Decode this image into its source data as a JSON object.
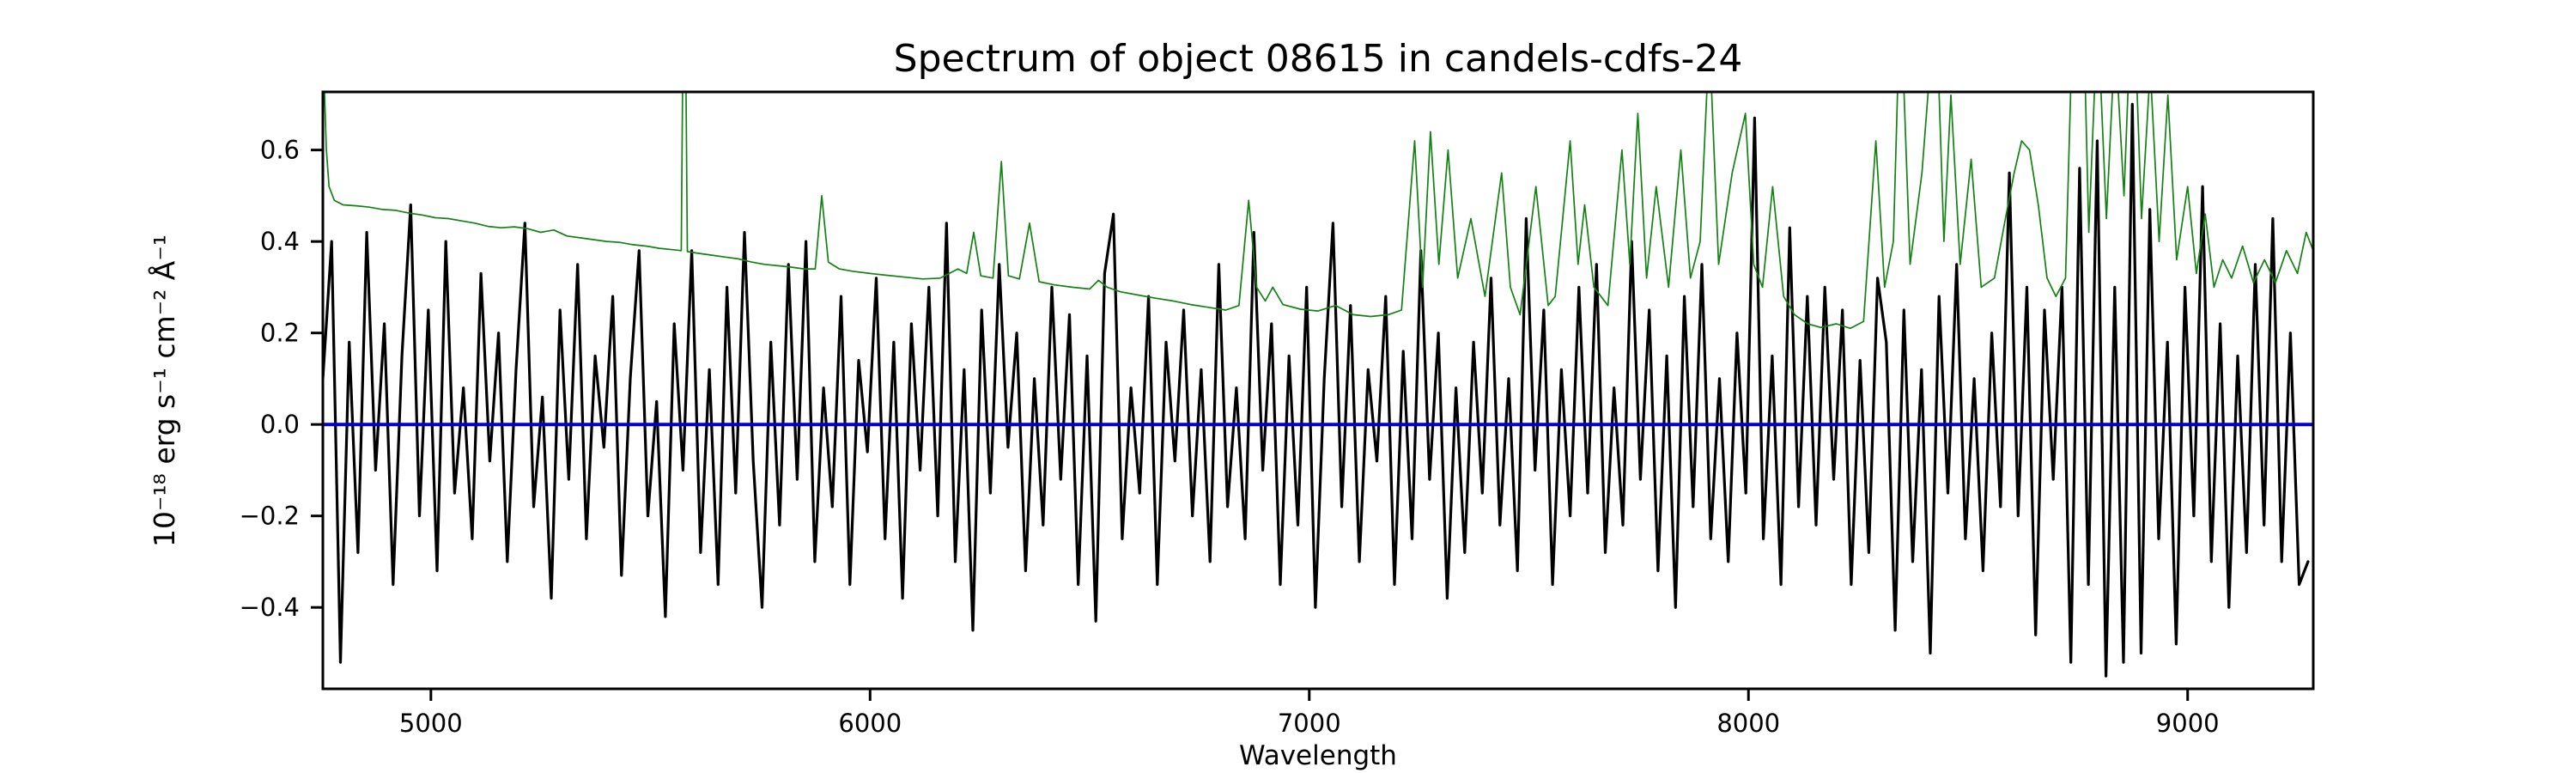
{
  "figure": {
    "title": "Spectrum of object 08615 in candels-cdfs-24",
    "xlabel": "Wavelength",
    "ylabel": "10⁻¹⁸ erg s⁻¹ cm⁻² Å⁻¹"
  },
  "chart_data": {
    "type": "line",
    "title": "Spectrum of object 08615 in candels-cdfs-24",
    "xlabel": "Wavelength",
    "ylabel": "10⁻¹⁸ erg s⁻¹ cm⁻² Å⁻¹",
    "xlim": [
      4754,
      9286
    ],
    "ylim": [
      -0.578,
      0.727
    ],
    "x_ticks": [
      5000,
      6000,
      7000,
      8000,
      9000
    ],
    "y_ticks": [
      0.6,
      0.4,
      0.2,
      0.0,
      -0.2,
      -0.4
    ],
    "grid": false,
    "legend": false,
    "colors": {
      "flux": "#000000",
      "noise": "#128212",
      "zero_line": "#0000cc",
      "axes": "#000000"
    },
    "series": [
      {
        "name": "object-flux-spectrum",
        "kind": "sampled",
        "color": "#000000",
        "linewidth": 3.2,
        "x_start": 4754,
        "x_step": 20,
        "values": [
          0.1,
          0.4,
          -0.52,
          0.18,
          -0.28,
          0.42,
          -0.1,
          0.22,
          -0.35,
          0.15,
          0.48,
          -0.2,
          0.25,
          -0.32,
          0.4,
          -0.15,
          0.08,
          -0.25,
          0.33,
          -0.08,
          0.2,
          -0.3,
          0.12,
          0.44,
          -0.18,
          0.06,
          -0.38,
          0.25,
          -0.12,
          0.35,
          -0.25,
          0.15,
          -0.05,
          0.28,
          -0.33,
          0.1,
          0.38,
          -0.2,
          0.05,
          -0.42,
          0.22,
          -0.1,
          0.38,
          -0.28,
          0.12,
          -0.35,
          0.3,
          -0.15,
          0.42,
          -0.08,
          -0.4,
          0.18,
          -0.22,
          0.35,
          -0.12,
          0.4,
          -0.3,
          0.08,
          -0.18,
          0.28,
          -0.35,
          0.14,
          -0.06,
          0.32,
          -0.25,
          0.18,
          -0.38,
          0.22,
          -0.1,
          0.3,
          -0.2,
          0.44,
          -0.3,
          0.12,
          -0.45,
          0.25,
          -0.15,
          0.35,
          -0.05,
          0.2,
          -0.32,
          0.1,
          -0.22,
          0.3,
          -0.12,
          0.24,
          -0.35,
          0.15,
          -0.43,
          0.33,
          0.46,
          -0.25,
          0.08,
          -0.15,
          0.28,
          -0.35,
          0.18,
          -0.08,
          0.25,
          -0.2,
          0.12,
          -0.3,
          0.35,
          -0.18,
          0.08,
          -0.25,
          0.42,
          -0.1,
          0.22,
          -0.35,
          0.15,
          -0.22,
          0.3,
          -0.4,
          0.1,
          0.44,
          -0.18,
          0.26,
          -0.3,
          0.12,
          -0.08,
          0.28,
          -0.35,
          0.16,
          -0.25,
          0.38,
          -0.12,
          0.2,
          -0.38,
          0.08,
          -0.28,
          0.18,
          -0.15,
          0.32,
          -0.22,
          0.1,
          -0.32,
          0.45,
          -0.1,
          0.25,
          -0.35,
          0.12,
          -0.2,
          0.3,
          -0.15,
          0.35,
          -0.28,
          0.08,
          -0.22,
          0.4,
          -0.12,
          0.25,
          -0.32,
          0.15,
          -0.4,
          0.28,
          -0.18,
          0.35,
          -0.25,
          0.1,
          -0.3,
          0.2,
          -0.15,
          0.67,
          -0.25,
          0.15,
          -0.35,
          0.43,
          -0.18,
          0.28,
          -0.22,
          0.3,
          -0.12,
          0.25,
          -0.35,
          0.14,
          -0.28,
          0.32,
          0.18,
          -0.45,
          0.25,
          -0.3,
          0.12,
          -0.5,
          0.28,
          -0.15,
          0.35,
          -0.25,
          0.1,
          -0.32,
          0.2,
          -0.18,
          0.55,
          -0.2,
          0.3,
          -0.46,
          0.25,
          -0.12,
          0.3,
          -0.52,
          0.56,
          -0.35,
          0.62,
          -0.55,
          0.3,
          -0.52,
          0.7,
          -0.5,
          0.47,
          -0.25,
          0.18,
          -0.48,
          0.3,
          -0.2,
          0.52,
          -0.3,
          0.22,
          -0.4,
          0.15,
          -0.28,
          0.35,
          -0.22,
          0.45,
          -0.3,
          0.2,
          -0.35,
          -0.3
        ]
      },
      {
        "name": "noise-spectrum",
        "kind": "points",
        "color": "#128212",
        "linewidth": 1.7,
        "points": [
          [
            4754,
            1.2
          ],
          [
            4758,
            0.72
          ],
          [
            4762,
            0.6
          ],
          [
            4768,
            0.52
          ],
          [
            4780,
            0.49
          ],
          [
            4800,
            0.48
          ],
          [
            4830,
            0.478
          ],
          [
            4860,
            0.475
          ],
          [
            4890,
            0.47
          ],
          [
            4920,
            0.468
          ],
          [
            4950,
            0.462
          ],
          [
            4980,
            0.458
          ],
          [
            5010,
            0.452
          ],
          [
            5040,
            0.45
          ],
          [
            5070,
            0.445
          ],
          [
            5100,
            0.44
          ],
          [
            5130,
            0.433
          ],
          [
            5160,
            0.43
          ],
          [
            5190,
            0.432
          ],
          [
            5220,
            0.428
          ],
          [
            5250,
            0.42
          ],
          [
            5280,
            0.425
          ],
          [
            5310,
            0.412
          ],
          [
            5340,
            0.408
          ],
          [
            5370,
            0.404
          ],
          [
            5400,
            0.4
          ],
          [
            5430,
            0.398
          ],
          [
            5460,
            0.393
          ],
          [
            5490,
            0.39
          ],
          [
            5520,
            0.385
          ],
          [
            5550,
            0.382
          ],
          [
            5570,
            0.38
          ],
          [
            5577,
            1.2
          ],
          [
            5584,
            0.378
          ],
          [
            5610,
            0.374
          ],
          [
            5640,
            0.37
          ],
          [
            5670,
            0.366
          ],
          [
            5700,
            0.362
          ],
          [
            5730,
            0.355
          ],
          [
            5760,
            0.35
          ],
          [
            5790,
            0.347
          ],
          [
            5820,
            0.344
          ],
          [
            5850,
            0.34
          ],
          [
            5875,
            0.34
          ],
          [
            5890,
            0.5
          ],
          [
            5905,
            0.355
          ],
          [
            5930,
            0.34
          ],
          [
            5960,
            0.335
          ],
          [
            6000,
            0.33
          ],
          [
            6040,
            0.326
          ],
          [
            6080,
            0.322
          ],
          [
            6120,
            0.318
          ],
          [
            6160,
            0.32
          ],
          [
            6200,
            0.34
          ],
          [
            6220,
            0.33
          ],
          [
            6236,
            0.42
          ],
          [
            6252,
            0.325
          ],
          [
            6280,
            0.32
          ],
          [
            6299,
            0.575
          ],
          [
            6315,
            0.325
          ],
          [
            6340,
            0.318
          ],
          [
            6363,
            0.44
          ],
          [
            6385,
            0.312
          ],
          [
            6420,
            0.305
          ],
          [
            6460,
            0.3
          ],
          [
            6500,
            0.296
          ],
          [
            6520,
            0.315
          ],
          [
            6540,
            0.3
          ],
          [
            6570,
            0.29
          ],
          [
            6610,
            0.283
          ],
          [
            6650,
            0.276
          ],
          [
            6690,
            0.27
          ],
          [
            6730,
            0.262
          ],
          [
            6770,
            0.256
          ],
          [
            6810,
            0.25
          ],
          [
            6840,
            0.26
          ],
          [
            6862,
            0.49
          ],
          [
            6880,
            0.3
          ],
          [
            6900,
            0.27
          ],
          [
            6917,
            0.3
          ],
          [
            6940,
            0.262
          ],
          [
            6980,
            0.252
          ],
          [
            7020,
            0.248
          ],
          [
            7060,
            0.26
          ],
          [
            7100,
            0.24
          ],
          [
            7140,
            0.236
          ],
          [
            7180,
            0.24
          ],
          [
            7210,
            0.25
          ],
          [
            7240,
            0.62
          ],
          [
            7258,
            0.3
          ],
          [
            7276,
            0.64
          ],
          [
            7295,
            0.35
          ],
          [
            7316,
            0.6
          ],
          [
            7338,
            0.32
          ],
          [
            7368,
            0.45
          ],
          [
            7400,
            0.28
          ],
          [
            7438,
            0.55
          ],
          [
            7458,
            0.3
          ],
          [
            7480,
            0.24
          ],
          [
            7516,
            0.52
          ],
          [
            7544,
            0.26
          ],
          [
            7560,
            0.28
          ],
          [
            7594,
            0.62
          ],
          [
            7612,
            0.35
          ],
          [
            7627,
            0.48
          ],
          [
            7648,
            0.3
          ],
          [
            7680,
            0.26
          ],
          [
            7712,
            0.6
          ],
          [
            7730,
            0.35
          ],
          [
            7748,
            0.68
          ],
          [
            7768,
            0.32
          ],
          [
            7790,
            0.52
          ],
          [
            7818,
            0.3
          ],
          [
            7846,
            0.6
          ],
          [
            7868,
            0.32
          ],
          [
            7890,
            0.4
          ],
          [
            7911,
            0.85
          ],
          [
            7932,
            0.35
          ],
          [
            7963,
            0.55
          ],
          [
            7993,
            0.68
          ],
          [
            8012,
            0.35
          ],
          [
            8032,
            0.3
          ],
          [
            8055,
            0.52
          ],
          [
            8080,
            0.28
          ],
          [
            8105,
            0.24
          ],
          [
            8135,
            0.22
          ],
          [
            8165,
            0.212
          ],
          [
            8200,
            0.22
          ],
          [
            8232,
            0.21
          ],
          [
            8262,
            0.225
          ],
          [
            8290,
            0.62
          ],
          [
            8310,
            0.3
          ],
          [
            8330,
            0.4
          ],
          [
            8346,
            0.95
          ],
          [
            8368,
            0.35
          ],
          [
            8395,
            0.55
          ],
          [
            8415,
            0.8
          ],
          [
            8428,
            0.9
          ],
          [
            8445,
            0.4
          ],
          [
            8461,
            0.72
          ],
          [
            8482,
            0.35
          ],
          [
            8507,
            0.58
          ],
          [
            8530,
            0.3
          ],
          [
            8560,
            0.32
          ],
          [
            8585,
            0.45
          ],
          [
            8605,
            0.55
          ],
          [
            8622,
            0.62
          ],
          [
            8640,
            0.6
          ],
          [
            8660,
            0.48
          ],
          [
            8680,
            0.32
          ],
          [
            8700,
            0.28
          ],
          [
            8722,
            0.32
          ],
          [
            8740,
            0.95
          ],
          [
            8758,
            1.1
          ],
          [
            8775,
            0.42
          ],
          [
            8795,
            0.9
          ],
          [
            8815,
            0.45
          ],
          [
            8835,
            0.85
          ],
          [
            8855,
            0.5
          ],
          [
            8875,
            1.0
          ],
          [
            8895,
            0.45
          ],
          [
            8915,
            0.78
          ],
          [
            8935,
            0.4
          ],
          [
            8955,
            0.72
          ],
          [
            8975,
            0.36
          ],
          [
            9000,
            0.52
          ],
          [
            9020,
            0.33
          ],
          [
            9040,
            0.46
          ],
          [
            9060,
            0.3
          ],
          [
            9080,
            0.36
          ],
          [
            9100,
            0.32
          ],
          [
            9125,
            0.39
          ],
          [
            9150,
            0.31
          ],
          [
            9175,
            0.36
          ],
          [
            9200,
            0.31
          ],
          [
            9225,
            0.38
          ],
          [
            9250,
            0.33
          ],
          [
            9270,
            0.42
          ],
          [
            9286,
            0.38
          ]
        ]
      },
      {
        "name": "zero-flux-line",
        "kind": "hline",
        "color": "#0000cc",
        "linewidth": 4,
        "y": 0.0
      }
    ]
  }
}
